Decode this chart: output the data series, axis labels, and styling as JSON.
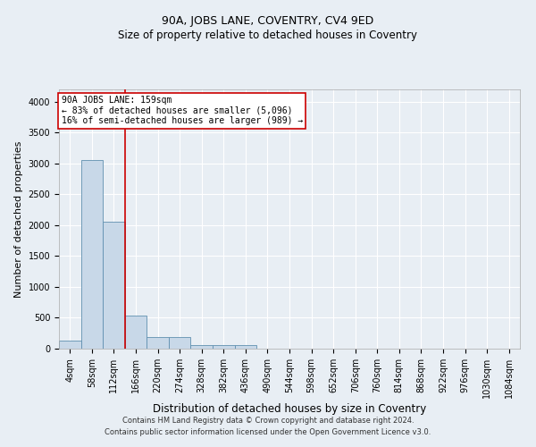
{
  "title": "90A, JOBS LANE, COVENTRY, CV4 9ED",
  "subtitle": "Size of property relative to detached houses in Coventry",
  "xlabel": "Distribution of detached houses by size in Coventry",
  "ylabel": "Number of detached properties",
  "footer_line1": "Contains HM Land Registry data © Crown copyright and database right 2024.",
  "footer_line2": "Contains public sector information licensed under the Open Government Licence v3.0.",
  "annotation_line1": "90A JOBS LANE: 159sqm",
  "annotation_line2": "← 83% of detached houses are smaller (5,096)",
  "annotation_line3": "16% of semi-detached houses are larger (989) →",
  "bar_labels": [
    "4sqm",
    "58sqm",
    "112sqm",
    "166sqm",
    "220sqm",
    "274sqm",
    "328sqm",
    "382sqm",
    "436sqm",
    "490sqm",
    "544sqm",
    "598sqm",
    "652sqm",
    "706sqm",
    "760sqm",
    "814sqm",
    "868sqm",
    "922sqm",
    "976sqm",
    "1030sqm",
    "1084sqm"
  ],
  "bar_values": [
    130,
    3050,
    2060,
    540,
    190,
    190,
    65,
    65,
    55,
    0,
    0,
    0,
    0,
    0,
    0,
    0,
    0,
    0,
    0,
    0,
    0
  ],
  "bar_color": "#c8d8e8",
  "bar_edge_color": "#6090b0",
  "red_line_x": 2.5,
  "ylim": [
    0,
    4200
  ],
  "yticks": [
    0,
    500,
    1000,
    1500,
    2000,
    2500,
    3000,
    3500,
    4000
  ],
  "bg_color": "#e8eef4",
  "plot_bg_color": "#e8eef4",
  "grid_color": "#ffffff",
  "annotation_box_color": "#ffffff",
  "annotation_border_color": "#cc0000",
  "red_line_color": "#cc0000",
  "title_fontsize": 9,
  "subtitle_fontsize": 8.5,
  "ylabel_fontsize": 8,
  "xlabel_fontsize": 8.5,
  "tick_fontsize": 7,
  "annotation_fontsize": 7,
  "footer_fontsize": 6
}
